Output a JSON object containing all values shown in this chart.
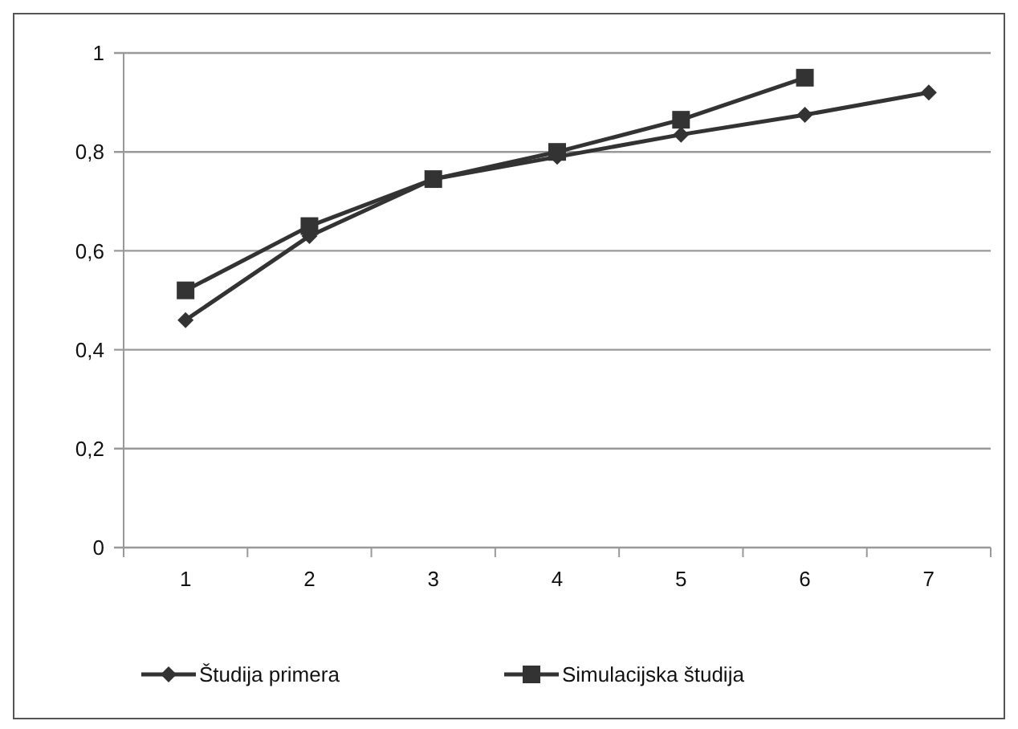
{
  "chart_data": {
    "type": "line",
    "categories": [
      "1",
      "2",
      "3",
      "4",
      "5",
      "6",
      "7"
    ],
    "series": [
      {
        "name": "Študija primera",
        "color": "#333333",
        "marker": "diamond",
        "values": [
          0.46,
          0.63,
          0.745,
          0.79,
          0.835,
          0.875,
          0.92
        ]
      },
      {
        "name": "Simulacijska študija",
        "color": "#333333",
        "marker": "square",
        "values": [
          0.52,
          0.65,
          0.745,
          0.8,
          0.865,
          0.95,
          null
        ]
      }
    ],
    "ylim": [
      0,
      1
    ],
    "yticks": [
      {
        "value": 0,
        "label": "0"
      },
      {
        "value": 0.2,
        "label": "0,2"
      },
      {
        "value": 0.4,
        "label": "0,4"
      },
      {
        "value": 0.6,
        "label": "0,6"
      },
      {
        "value": 0.8,
        "label": "0,8"
      },
      {
        "value": 1,
        "label": "1"
      }
    ],
    "grid": "y",
    "legend": "bottom",
    "line_style": "solid"
  }
}
